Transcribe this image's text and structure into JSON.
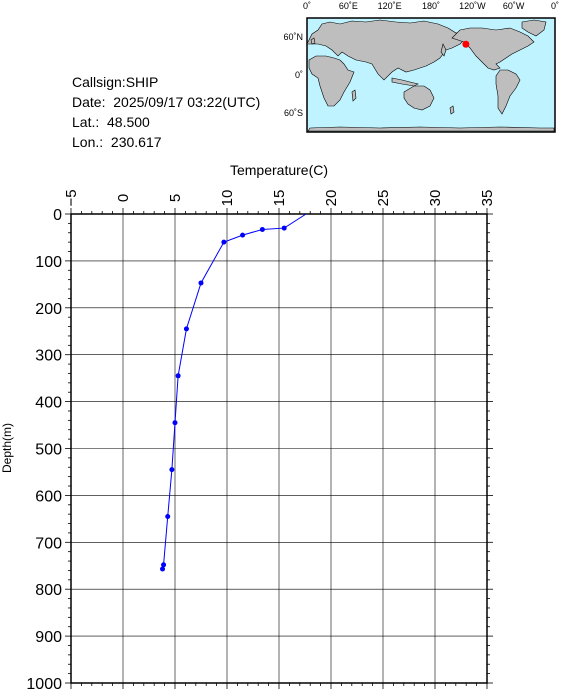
{
  "info": {
    "callsign": "Callsign:SHIP",
    "date": "Date:  2025/09/17 03:22(UTC)",
    "lat": "Lat.:  48.500",
    "lon": "Lon.:  230.617"
  },
  "map": {
    "top_ticks": [
      "0˚",
      "60˚E",
      "120˚E",
      "180˚",
      "120˚W",
      "60˚W",
      "0˚"
    ],
    "left_ticks": [
      "60˚N",
      "0˚",
      "60˚S"
    ],
    "marker": {
      "lat": 48.5,
      "lon": 230.617
    },
    "colors": {
      "ocean": "#bff3ff",
      "land": "#bebebe",
      "marker": "#ff0000"
    }
  },
  "chart_data": {
    "type": "line",
    "title": "",
    "xlabel": "Temperature(C)",
    "ylabel": "Depth(m)",
    "xlim": [
      -5,
      35
    ],
    "ylim": [
      1000,
      0
    ],
    "x_ticks": [
      "−5",
      "0",
      "5",
      "10",
      "15",
      "20",
      "25",
      "30",
      "35"
    ],
    "y_ticks": [
      "0",
      "100",
      "200",
      "300",
      "400",
      "500",
      "600",
      "700",
      "800",
      "900",
      "1000"
    ],
    "x_axis_position": "top",
    "grid": true,
    "color": "#0000ff",
    "series": [
      {
        "temperature": [
          17.6,
          15.5,
          13.4,
          11.5,
          9.7,
          7.5,
          6.1,
          5.3,
          5.0,
          4.7,
          4.3,
          3.9,
          3.8
        ],
        "depth": [
          0,
          30,
          33,
          45,
          60,
          147,
          245,
          345,
          445,
          545,
          645,
          748,
          757
        ]
      }
    ]
  }
}
